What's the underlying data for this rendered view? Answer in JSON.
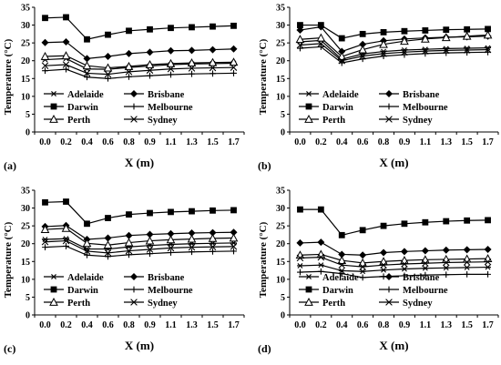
{
  "chart_data": [
    {
      "panel": "(a)",
      "type": "line",
      "xlabel": "X (m)",
      "ylabel": "Temperature (°C)",
      "x": [
        0.0,
        0.2,
        0.4,
        0.6,
        0.8,
        0.9,
        1.1,
        1.3,
        1.5,
        1.7
      ],
      "xticks": [
        "0.0",
        "0.2",
        "0.4",
        "0.6",
        "0.8",
        "0.9",
        "1.1",
        "1.3",
        "1.5",
        "1.7"
      ],
      "ylim": [
        0,
        35
      ],
      "yticks": [
        0,
        5,
        10,
        15,
        20,
        25,
        30,
        35
      ],
      "series": [
        {
          "name": "Adelaide",
          "marker": "star",
          "values": [
            20.3,
            20.6,
            17.7,
            17.6,
            18.1,
            18.5,
            18.9,
            19.1,
            19.2,
            19.3
          ]
        },
        {
          "name": "Brisbane",
          "marker": "diamond",
          "values": [
            25.1,
            25.3,
            20.6,
            21.2,
            22.0,
            22.4,
            22.8,
            22.9,
            23.1,
            23.3
          ]
        },
        {
          "name": "Darwin",
          "marker": "square",
          "values": [
            32.0,
            32.2,
            26.0,
            27.3,
            28.4,
            28.8,
            29.2,
            29.4,
            29.6,
            29.8
          ]
        },
        {
          "name": "Melbourne",
          "marker": "plus",
          "values": [
            17.2,
            17.6,
            15.4,
            15.0,
            15.5,
            15.8,
            16.1,
            16.3,
            16.4,
            16.5
          ]
        },
        {
          "name": "Perth",
          "marker": "triangle",
          "values": [
            21.2,
            21.4,
            18.6,
            18.0,
            18.4,
            18.9,
            19.2,
            19.4,
            19.5,
            19.6
          ]
        },
        {
          "name": "Sydney",
          "marker": "x",
          "values": [
            18.6,
            18.9,
            16.5,
            16.2,
            16.9,
            17.3,
            17.7,
            17.9,
            18.0,
            18.1
          ]
        }
      ]
    },
    {
      "panel": "(b)",
      "type": "line",
      "xlabel": "X (m)",
      "ylabel": "Temperature (°C)",
      "x": [
        0.0,
        0.2,
        0.4,
        0.6,
        0.8,
        0.9,
        1.1,
        1.3,
        1.5,
        1.7
      ],
      "xticks": [
        "0.0",
        "0.2",
        "0.4",
        "0.6",
        "0.8",
        "0.9",
        "1.1",
        "1.3",
        "1.5",
        "1.7"
      ],
      "ylim": [
        0,
        35
      ],
      "yticks": [
        0,
        5,
        10,
        15,
        20,
        25,
        30,
        35
      ],
      "series": [
        {
          "name": "Adelaide",
          "marker": "star",
          "values": [
            25.3,
            25.7,
            20.4,
            21.9,
            22.6,
            23.0,
            23.2,
            23.4,
            23.5,
            23.6
          ]
        },
        {
          "name": "Brisbane",
          "marker": "diamond",
          "values": [
            28.6,
            29.5,
            22.6,
            24.6,
            25.6,
            26.1,
            26.4,
            26.6,
            26.7,
            26.9
          ]
        },
        {
          "name": "Darwin",
          "marker": "square",
          "values": [
            30.0,
            30.0,
            26.3,
            27.5,
            28.0,
            28.3,
            28.5,
            28.7,
            28.8,
            28.9
          ]
        },
        {
          "name": "Melbourne",
          "marker": "plus",
          "values": [
            23.5,
            23.9,
            19.4,
            20.5,
            21.3,
            21.7,
            22.0,
            22.2,
            22.3,
            22.4
          ]
        },
        {
          "name": "Perth",
          "marker": "triangle",
          "values": [
            26.0,
            26.4,
            21.2,
            23.1,
            24.6,
            25.5,
            26.1,
            26.5,
            26.9,
            27.2
          ]
        },
        {
          "name": "Sydney",
          "marker": "x",
          "values": [
            24.4,
            24.8,
            20.0,
            21.3,
            22.0,
            22.4,
            22.7,
            22.9,
            23.0,
            23.1
          ]
        }
      ]
    },
    {
      "panel": "(c)",
      "type": "line",
      "xlabel": "X (m)",
      "ylabel": "Temperature (°C)",
      "x": [
        0.0,
        0.2,
        0.4,
        0.6,
        0.8,
        0.9,
        1.1,
        1.3,
        1.5,
        1.7
      ],
      "xticks": [
        "0.0",
        "0.2",
        "0.4",
        "0.6",
        "0.8",
        "0.9",
        "1.1",
        "1.3",
        "1.5",
        "1.7"
      ],
      "ylim": [
        0,
        35
      ],
      "yticks": [
        0,
        5,
        10,
        15,
        20,
        25,
        30,
        35
      ],
      "series": [
        {
          "name": "Adelaide",
          "marker": "star",
          "values": [
            21.2,
            21.4,
            18.5,
            18.5,
            19.1,
            19.5,
            19.8,
            20.0,
            20.1,
            20.2
          ]
        },
        {
          "name": "Brisbane",
          "marker": "diamond",
          "values": [
            24.8,
            25.1,
            21.2,
            21.6,
            22.3,
            22.6,
            22.8,
            23.0,
            23.1,
            23.2
          ]
        },
        {
          "name": "Darwin",
          "marker": "square",
          "values": [
            31.6,
            31.8,
            25.6,
            27.2,
            28.2,
            28.6,
            28.9,
            29.1,
            29.3,
            29.4
          ]
        },
        {
          "name": "Melbourne",
          "marker": "plus",
          "values": [
            19.0,
            19.3,
            16.8,
            16.4,
            16.9,
            17.2,
            17.5,
            17.7,
            17.8,
            17.9
          ]
        },
        {
          "name": "Perth",
          "marker": "triangle",
          "values": [
            24.0,
            24.3,
            20.1,
            19.6,
            20.3,
            20.8,
            21.1,
            21.3,
            21.5,
            21.6
          ]
        },
        {
          "name": "Sydney",
          "marker": "x",
          "values": [
            20.5,
            20.8,
            17.9,
            17.4,
            18.0,
            18.4,
            18.8,
            19.0,
            19.1,
            19.2
          ]
        }
      ]
    },
    {
      "panel": "(d)",
      "type": "line",
      "xlabel": "X (m)",
      "ylabel": "Temperature (°C)",
      "x": [
        0.0,
        0.2,
        0.4,
        0.6,
        0.8,
        0.9,
        1.1,
        1.3,
        1.5,
        1.7
      ],
      "xticks": [
        "0.0",
        "0.2",
        "0.4",
        "0.6",
        "0.8",
        "0.9",
        "1.1",
        "1.3",
        "1.5",
        "1.7"
      ],
      "ylim": [
        0,
        35
      ],
      "yticks": [
        0,
        5,
        10,
        15,
        20,
        25,
        30,
        35
      ],
      "series": [
        {
          "name": "Adelaide",
          "marker": "star",
          "values": [
            13.8,
            14.0,
            12.4,
            12.2,
            12.6,
            12.9,
            13.1,
            13.2,
            13.3,
            13.4
          ]
        },
        {
          "name": "Brisbane",
          "marker": "diamond",
          "values": [
            20.2,
            20.4,
            17.0,
            16.8,
            17.5,
            17.8,
            18.0,
            18.2,
            18.3,
            18.4
          ]
        },
        {
          "name": "Darwin",
          "marker": "square",
          "values": [
            29.6,
            29.6,
            22.4,
            23.8,
            25.0,
            25.6,
            26.0,
            26.3,
            26.5,
            26.6
          ]
        },
        {
          "name": "Melbourne",
          "marker": "plus",
          "values": [
            12.0,
            12.2,
            11.6,
            10.5,
            10.8,
            11.0,
            11.2,
            11.3,
            11.4,
            11.4
          ]
        },
        {
          "name": "Perth",
          "marker": "triangle",
          "values": [
            16.8,
            17.0,
            15.3,
            14.6,
            15.0,
            15.3,
            15.5,
            15.6,
            15.7,
            15.8
          ]
        },
        {
          "name": "Sydney",
          "marker": "x",
          "values": [
            16.0,
            16.2,
            14.0,
            13.5,
            14.0,
            14.3,
            14.5,
            14.7,
            14.8,
            14.9
          ]
        }
      ]
    }
  ]
}
